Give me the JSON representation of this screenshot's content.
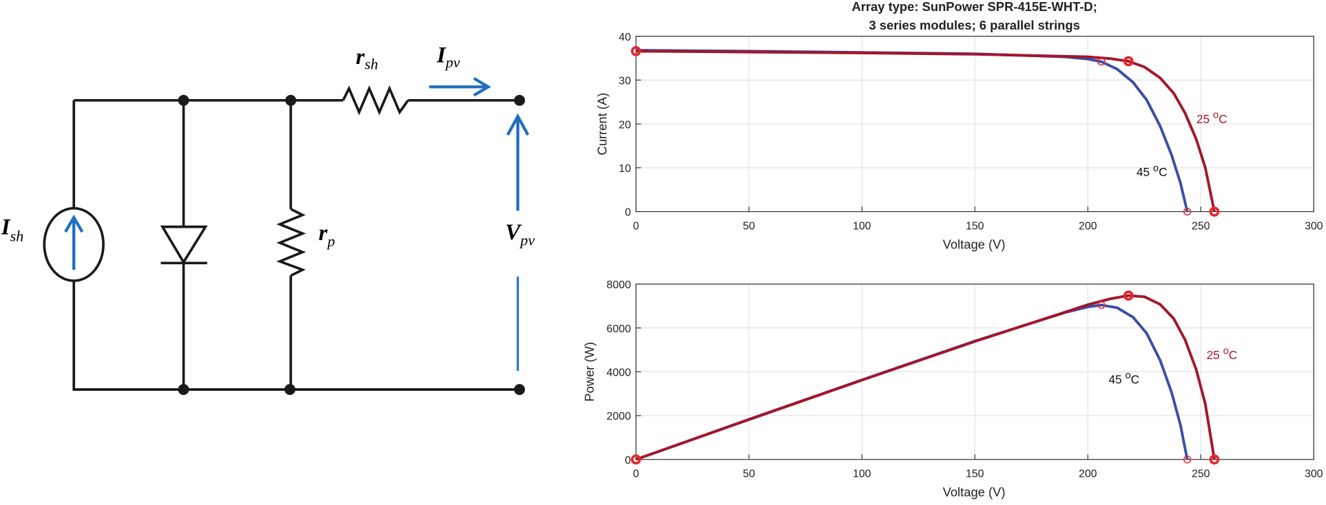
{
  "diagram": {
    "labels": [
      {
        "symbol": "I",
        "subscript": "sh"
      },
      {
        "symbol": "r",
        "subscript": "sh"
      },
      {
        "symbol": "I",
        "subscript": "pv"
      },
      {
        "symbol": "r",
        "subscript": "p"
      },
      {
        "symbol": "V",
        "subscript": "pv"
      }
    ]
  },
  "chart_data": [
    {
      "type": "line",
      "title": "Array type: SunPower SPR-415E-WHT-D;",
      "subtitle": "3 series modules; 6 parallel strings",
      "x_label": "Voltage (V)",
      "y_label": "Current (A)",
      "xlim": [
        0,
        300
      ],
      "xticks": [
        0,
        50,
        100,
        150,
        200,
        250,
        300
      ],
      "ylim": [
        0,
        40
      ],
      "yticks": [
        0,
        10,
        20,
        30,
        40
      ],
      "grid": true,
      "series": [
        {
          "color": "#3a4ea6",
          "marker_color": "#d9343a",
          "x": [
            0,
            50,
            100,
            150,
            190,
            200,
            206,
            213,
            220,
            226,
            232,
            237,
            241,
            244
          ],
          "y": [
            36.8,
            36.6,
            36.3,
            36.0,
            35.3,
            34.8,
            34.2,
            32.5,
            29.5,
            25.5,
            19.5,
            13,
            6.5,
            0
          ],
          "marker_x": [
            206,
            244
          ],
          "marker_y": [
            34.2,
            0
          ],
          "label": {
            "number": "45",
            "sup": "o",
            "unit": "C"
          },
          "label_color": "#111111"
        },
        {
          "color": "#a3162b",
          "marker_color": "#e8262a",
          "x": [
            0,
            50,
            100,
            150,
            200,
            210,
            218,
            225,
            232,
            238,
            243,
            248,
            252,
            256
          ],
          "y": [
            36.6,
            36.4,
            36.2,
            35.9,
            35.3,
            34.9,
            34.3,
            33.0,
            30.5,
            27.0,
            22.5,
            16.5,
            10,
            0
          ],
          "marker_x": [
            0,
            218,
            256
          ],
          "marker_y": [
            36.6,
            34.3,
            0
          ],
          "label": {
            "number": "25",
            "sup": "o",
            "unit": "C"
          },
          "label_color": "#a3162b"
        }
      ]
    },
    {
      "type": "line",
      "x_label": "Voltage (V)",
      "y_label": "Power (W)",
      "xlim": [
        0,
        300
      ],
      "xticks": [
        0,
        50,
        100,
        150,
        200,
        250,
        300
      ],
      "ylim": [
        0,
        8000
      ],
      "yticks": [
        0,
        2000,
        4000,
        6000,
        8000
      ],
      "grid": true,
      "series": [
        {
          "color": "#3a4ea6",
          "marker_color": "#d9343a",
          "x": [
            0,
            50,
            100,
            150,
            190,
            200,
            206,
            213,
            220,
            226,
            232,
            237,
            241,
            244
          ],
          "y": [
            0,
            1830,
            3630,
            5400,
            6707,
            6960,
            7045,
            6923,
            6490,
            5763,
            4524,
            3081,
            1567,
            0
          ],
          "marker_x": [
            206,
            244
          ],
          "marker_y": [
            7045,
            0
          ],
          "label": {
            "number": "45",
            "sup": "o",
            "unit": "C"
          },
          "label_color": "#111111"
        },
        {
          "color": "#a3162b",
          "marker_color": "#e8262a",
          "x": [
            0,
            50,
            100,
            150,
            200,
            210,
            218,
            225,
            232,
            238,
            243,
            248,
            252,
            256
          ],
          "y": [
            0,
            1820,
            3620,
            5385,
            7060,
            7329,
            7477,
            7425,
            7076,
            6426,
            5468,
            4092,
            2520,
            0
          ],
          "marker_x": [
            0,
            218,
            256
          ],
          "marker_y": [
            0,
            7477,
            0
          ],
          "label": {
            "number": "25",
            "sup": "o",
            "unit": "C"
          },
          "label_color": "#a3162b"
        }
      ]
    }
  ]
}
